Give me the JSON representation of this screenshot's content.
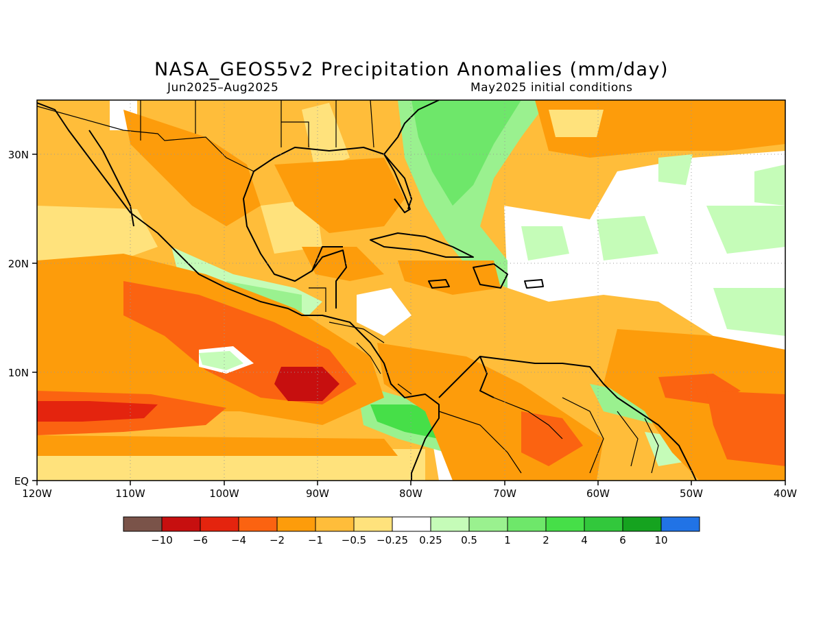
{
  "title": "NASA_GEOS5v2 Precipitation Anomalies (mm/day)",
  "subtitle_left": "Jun2025–Aug2025",
  "subtitle_right": "May2025 initial conditions",
  "lon_labels": [
    "120W",
    "110W",
    "100W",
    "90W",
    "80W",
    "70W",
    "60W",
    "50W",
    "40W"
  ],
  "lat_labels": [
    "EQ",
    "10N",
    "20N",
    "30N"
  ],
  "colorbar": {
    "colors": [
      "#7a5349",
      "#c70f0f",
      "#e4240e",
      "#fb6311",
      "#fd9c0b",
      "#ffbd3a",
      "#ffe27c",
      "#ffffff",
      "#c5fcb8",
      "#9af18f",
      "#6ee76a",
      "#46df48",
      "#32c83c",
      "#15a31f",
      "#2173e6"
    ],
    "labels": [
      "−10",
      "−6",
      "−4",
      "−2",
      "−1",
      "−0.5",
      "−0.25",
      "0.25",
      "0.5",
      "1",
      "2",
      "4",
      "6",
      "10"
    ]
  }
}
